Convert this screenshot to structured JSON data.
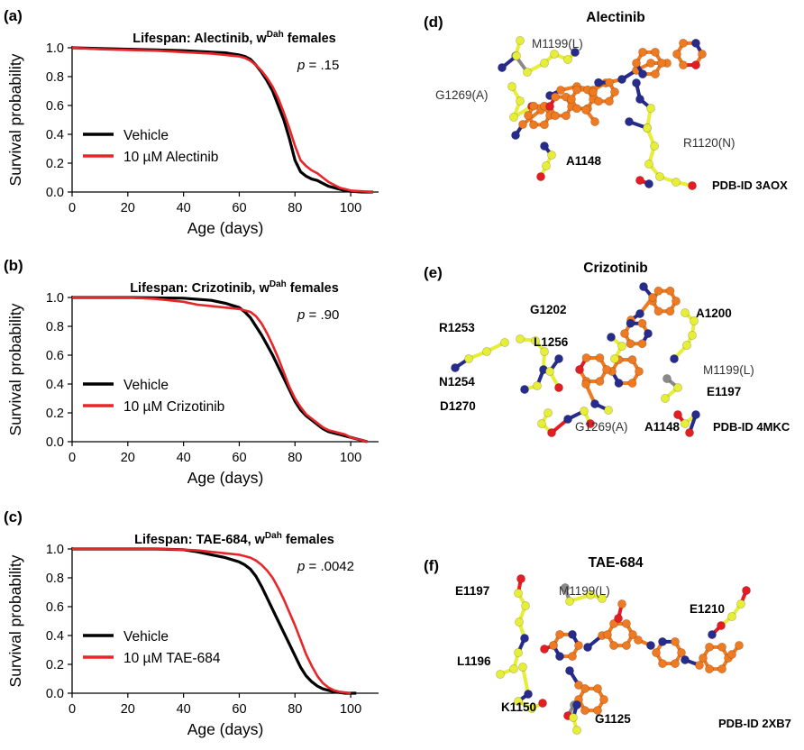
{
  "chart_data": [
    {
      "panel_label": "(a)",
      "type": "line",
      "title_prefix": "Lifespan: Alectinib, w",
      "title_sup": "Dah",
      "title_suffix": " females",
      "xlabel": "Age (days)",
      "ylabel": "Survival probability",
      "xlim": [
        0,
        110
      ],
      "ylim": [
        0,
        1.0
      ],
      "xticks": [
        0,
        20,
        40,
        60,
        80,
        100
      ],
      "yticks": [
        0.0,
        0.2,
        0.4,
        0.6,
        0.8,
        1.0
      ],
      "annotation_p": "p",
      "annotation_value": " = .15",
      "legend_position": "bottom-left",
      "series": [
        {
          "name": "Vehicle",
          "color": "#000000",
          "x": [
            0,
            10,
            20,
            30,
            40,
            50,
            55,
            60,
            62,
            64,
            66,
            68,
            70,
            72,
            74,
            76,
            78,
            80,
            82,
            84,
            86,
            88,
            90,
            92,
            94,
            96,
            98,
            100,
            104,
            108
          ],
          "y": [
            1.0,
            0.995,
            0.99,
            0.985,
            0.98,
            0.97,
            0.965,
            0.95,
            0.94,
            0.92,
            0.88,
            0.83,
            0.77,
            0.7,
            0.6,
            0.5,
            0.37,
            0.22,
            0.14,
            0.11,
            0.09,
            0.08,
            0.06,
            0.04,
            0.03,
            0.02,
            0.01,
            0.005,
            0.0,
            0.0
          ]
        },
        {
          "name": "10 µM Alectinib",
          "color": "#e8262a",
          "x": [
            0,
            10,
            20,
            30,
            40,
            50,
            55,
            60,
            62,
            64,
            66,
            68,
            70,
            72,
            74,
            76,
            78,
            80,
            82,
            84,
            86,
            88,
            90,
            92,
            94,
            96,
            98,
            100,
            104,
            108
          ],
          "y": [
            1.0,
            0.99,
            0.985,
            0.98,
            0.97,
            0.96,
            0.95,
            0.94,
            0.93,
            0.91,
            0.88,
            0.84,
            0.79,
            0.73,
            0.65,
            0.55,
            0.44,
            0.32,
            0.22,
            0.18,
            0.15,
            0.13,
            0.1,
            0.07,
            0.05,
            0.03,
            0.02,
            0.01,
            0.005,
            0.0
          ]
        }
      ]
    },
    {
      "panel_label": "(b)",
      "type": "line",
      "title_prefix": "Lifespan: Crizotinib, w",
      "title_sup": "Dah",
      "title_suffix": " females",
      "xlabel": "Age (days)",
      "ylabel": "Survival probability",
      "xlim": [
        0,
        110
      ],
      "ylim": [
        0,
        1.0
      ],
      "xticks": [
        0,
        20,
        40,
        60,
        80,
        100
      ],
      "yticks": [
        0.0,
        0.2,
        0.4,
        0.6,
        0.8,
        1.0
      ],
      "annotation_p": "p",
      "annotation_value": " = .90",
      "legend_position": "bottom-left",
      "series": [
        {
          "name": "Vehicle",
          "color": "#000000",
          "x": [
            0,
            20,
            40,
            50,
            55,
            60,
            62,
            64,
            66,
            68,
            70,
            72,
            74,
            76,
            78,
            80,
            82,
            84,
            86,
            88,
            90,
            92,
            94,
            96,
            98,
            100,
            102,
            104,
            106
          ],
          "y": [
            1.0,
            1.0,
            0.995,
            0.98,
            0.96,
            0.93,
            0.9,
            0.86,
            0.8,
            0.74,
            0.67,
            0.6,
            0.52,
            0.44,
            0.36,
            0.28,
            0.22,
            0.18,
            0.15,
            0.12,
            0.09,
            0.07,
            0.06,
            0.05,
            0.04,
            0.03,
            0.02,
            0.01,
            0.0
          ]
        },
        {
          "name": "10 µM Crizotinib",
          "color": "#e8262a",
          "x": [
            0,
            20,
            30,
            40,
            45,
            50,
            55,
            60,
            62,
            64,
            66,
            68,
            70,
            72,
            74,
            76,
            78,
            80,
            82,
            84,
            86,
            88,
            90,
            92,
            94,
            96,
            98,
            100,
            102,
            104,
            106
          ],
          "y": [
            1.0,
            1.0,
            0.99,
            0.97,
            0.95,
            0.94,
            0.93,
            0.92,
            0.91,
            0.9,
            0.87,
            0.82,
            0.75,
            0.67,
            0.58,
            0.48,
            0.38,
            0.3,
            0.24,
            0.19,
            0.16,
            0.13,
            0.1,
            0.08,
            0.07,
            0.06,
            0.05,
            0.03,
            0.02,
            0.01,
            0.0
          ]
        }
      ]
    },
    {
      "panel_label": "(c)",
      "type": "line",
      "title_prefix": "Lifespan: TAE-684, w",
      "title_sup": "Dah",
      "title_suffix": " females",
      "xlabel": "Age (days)",
      "ylabel": "Survival probability",
      "xlim": [
        0,
        110
      ],
      "ylim": [
        0,
        1.0
      ],
      "xticks": [
        0,
        20,
        40,
        60,
        80,
        100
      ],
      "yticks": [
        0.0,
        0.2,
        0.4,
        0.6,
        0.8,
        1.0
      ],
      "annotation_p": "p",
      "annotation_value": " = .0042",
      "legend_position": "bottom-left",
      "series": [
        {
          "name": "Vehicle",
          "color": "#000000",
          "x": [
            0,
            20,
            30,
            40,
            45,
            50,
            55,
            60,
            62,
            64,
            66,
            68,
            70,
            72,
            74,
            76,
            78,
            80,
            82,
            84,
            86,
            88,
            90,
            92,
            94,
            96,
            98,
            100,
            102
          ],
          "y": [
            1.0,
            1.0,
            1.0,
            0.995,
            0.98,
            0.96,
            0.94,
            0.91,
            0.89,
            0.86,
            0.81,
            0.74,
            0.66,
            0.58,
            0.5,
            0.42,
            0.34,
            0.26,
            0.18,
            0.12,
            0.08,
            0.05,
            0.03,
            0.02,
            0.01,
            0.005,
            0.0,
            0.0,
            0.0
          ]
        },
        {
          "name": "10 µM TAE-684",
          "color": "#e8262a",
          "x": [
            0,
            20,
            30,
            40,
            45,
            50,
            55,
            60,
            62,
            64,
            66,
            68,
            70,
            72,
            74,
            76,
            78,
            80,
            82,
            84,
            86,
            88,
            90,
            92,
            94,
            96,
            98,
            100
          ],
          "y": [
            1.0,
            1.0,
            1.0,
            0.995,
            0.99,
            0.98,
            0.97,
            0.96,
            0.95,
            0.94,
            0.92,
            0.89,
            0.85,
            0.8,
            0.73,
            0.65,
            0.56,
            0.47,
            0.37,
            0.27,
            0.19,
            0.12,
            0.07,
            0.04,
            0.02,
            0.01,
            0.005,
            0.0
          ]
        }
      ]
    }
  ],
  "structures": [
    {
      "panel_label": "(d)",
      "title": "Alectinib",
      "pdb": "PDB-ID 3AOX",
      "residues": [
        {
          "text": "M1199(L)",
          "bold": false
        },
        {
          "text": "G1269(A)",
          "bold": false
        },
        {
          "text": "A1148",
          "bold": true
        },
        {
          "text": "R1120(N)",
          "bold": false
        }
      ]
    },
    {
      "panel_label": "(e)",
      "title": "Crizotinib",
      "pdb": "PDB-ID 4MKC",
      "residues": [
        {
          "text": "G1202",
          "bold": true
        },
        {
          "text": "A1200",
          "bold": true
        },
        {
          "text": "R1253",
          "bold": true
        },
        {
          "text": "L1256",
          "bold": true
        },
        {
          "text": "N1254",
          "bold": true
        },
        {
          "text": "M1199(L)",
          "bold": false
        },
        {
          "text": "E1197",
          "bold": true
        },
        {
          "text": "D1270",
          "bold": true
        },
        {
          "text": "G1269(A)",
          "bold": false
        },
        {
          "text": "A1148",
          "bold": true
        }
      ]
    },
    {
      "panel_label": "(f)",
      "title": "TAE-684",
      "pdb": "PDB-ID 2XB7",
      "residues": [
        {
          "text": "E1197",
          "bold": true
        },
        {
          "text": "M1199(L)",
          "bold": false
        },
        {
          "text": "E1210",
          "bold": true
        },
        {
          "text": "L1196",
          "bold": true
        },
        {
          "text": "K1150",
          "bold": true
        },
        {
          "text": "G1125",
          "bold": true
        }
      ]
    }
  ],
  "colors": {
    "carbon_ligand": "#ee7a22",
    "carbon_protein": "#e6ee38",
    "nitrogen": "#262b8c",
    "oxygen": "#e21d24",
    "sulfur": "#8a8a8a"
  }
}
